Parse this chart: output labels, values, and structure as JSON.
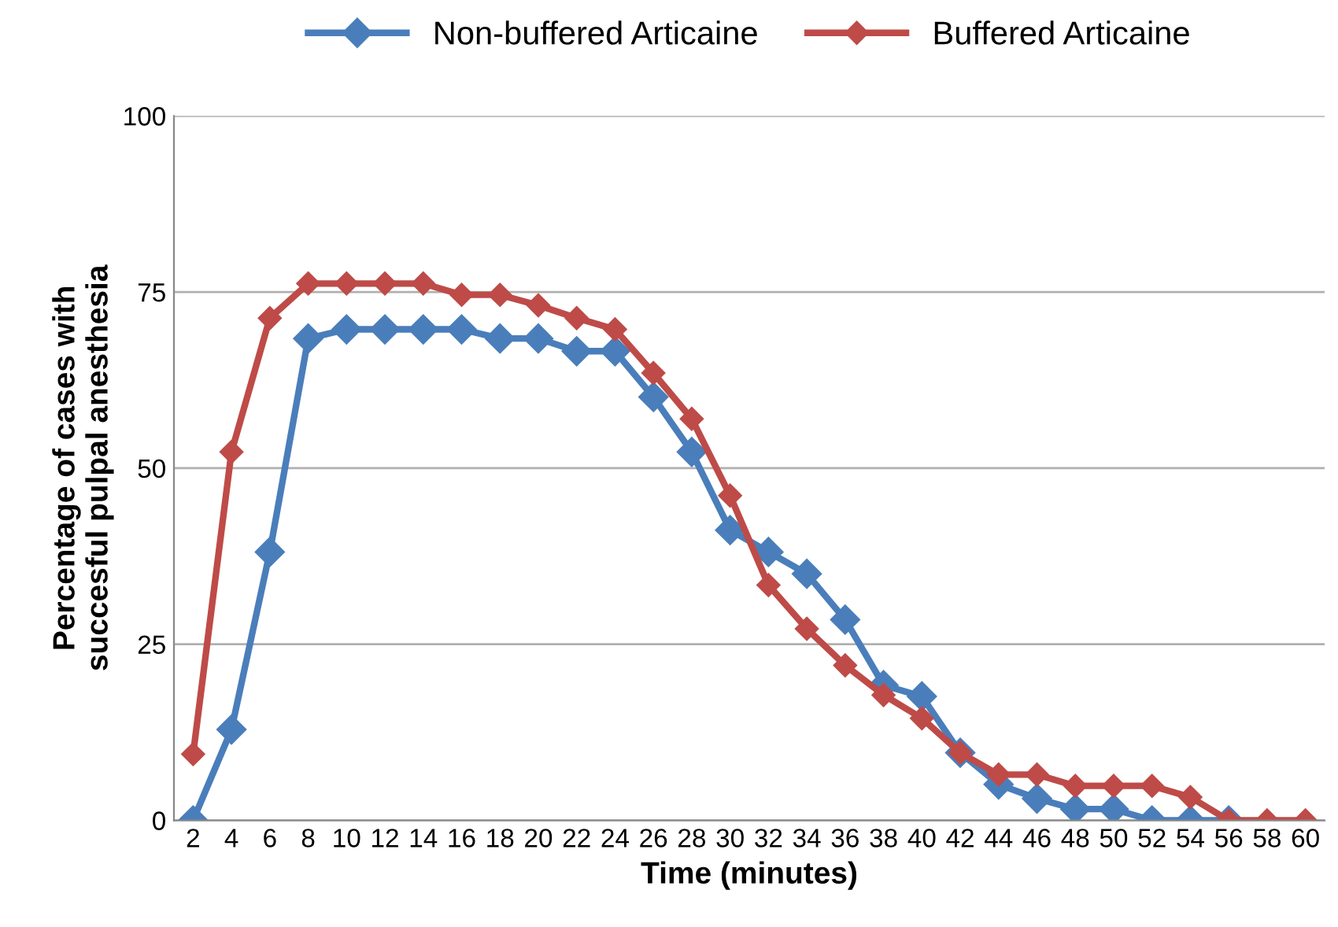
{
  "chart_data": {
    "type": "line",
    "xlabel": "Time (minutes)",
    "ylabel": "Percentage of cases with\nsuccesful pulpal anesthesia",
    "categories": [
      "2",
      "4",
      "6",
      "8",
      "10",
      "12",
      "14",
      "16",
      "18",
      "20",
      "22",
      "24",
      "26",
      "28",
      "30",
      "32",
      "34",
      "36",
      "38",
      "40",
      "42",
      "44",
      "46",
      "48",
      "50",
      "52",
      "54",
      "56",
      "58",
      "60"
    ],
    "series": [
      {
        "name": "Non-buffered Articaine",
        "color": "#4a7ebb",
        "values": [
          0,
          12.9,
          38.1,
          68.4,
          69.7,
          69.7,
          69.7,
          69.7,
          68.4,
          68.4,
          66.6,
          66.6,
          60.1,
          52.3,
          41.2,
          38.1,
          35.0,
          28.5,
          19.2,
          17.6,
          9.6,
          5.1,
          3.1,
          1.6,
          1.6,
          0,
          0,
          0,
          null,
          null
        ]
      },
      {
        "name": "Buffered Articaine",
        "color": "#be4b48",
        "values": [
          9.4,
          52.3,
          71.3,
          76.2,
          76.2,
          76.2,
          76.2,
          74.6,
          74.6,
          73.1,
          71.3,
          69.7,
          63.5,
          57.0,
          46.1,
          33.4,
          27.2,
          22.0,
          17.8,
          14.5,
          9.6,
          6.5,
          6.5,
          4.9,
          4.9,
          4.9,
          3.3,
          0,
          0,
          0
        ]
      }
    ],
    "ylim": [
      0,
      100
    ],
    "yticks": [
      0,
      25,
      50,
      75,
      100
    ],
    "grid": "y",
    "legend": "top",
    "marker": "diamond",
    "line_style": "solid"
  }
}
